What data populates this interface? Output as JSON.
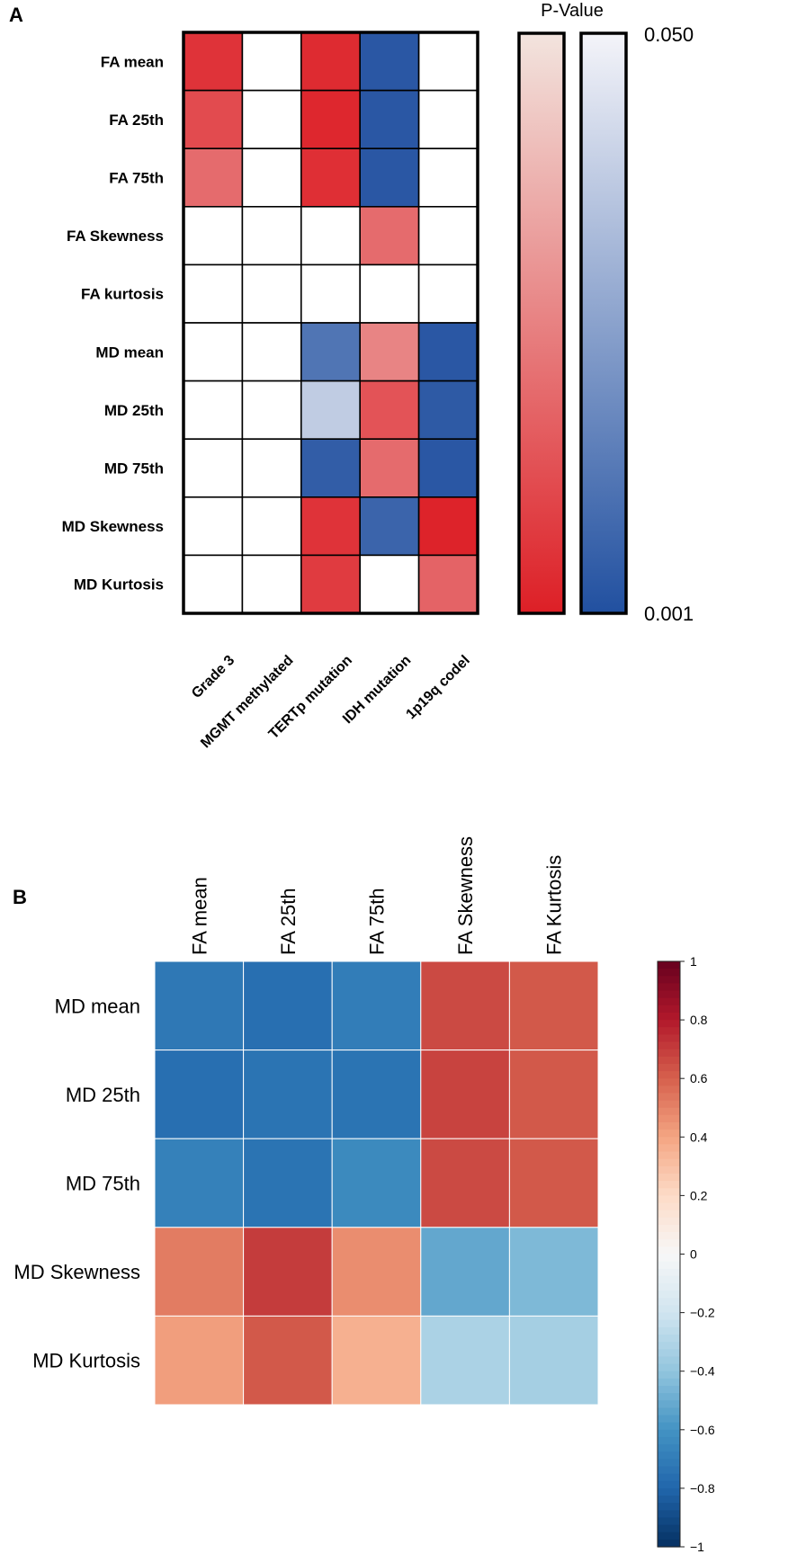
{
  "chart_data": [
    {
      "type": "heatmap",
      "panel_label": "A",
      "title": "",
      "colorbar_title": "P-Value",
      "colorbar_max_label": "0.050",
      "colorbar_min_label": "0.001",
      "p_range": [
        0.001,
        0.05
      ],
      "rows": [
        "FA mean",
        "FA 25th",
        "FA 75th",
        "FA Skewness",
        "FA kurtosis",
        "MD mean",
        "MD 25th",
        "MD 75th",
        "MD Skewness",
        "MD Kurtosis"
      ],
      "columns": [
        "Grade 3",
        "MGMT methylated",
        "TERTp mutation",
        "IDH mutation",
        "1p19q codel"
      ],
      "cells": [
        [
          {
            "c": "red",
            "p": 0.006
          },
          null,
          {
            "c": "red",
            "p": 0.004
          },
          {
            "c": "blue",
            "p": 0.003
          },
          null
        ],
        [
          {
            "c": "red",
            "p": 0.012
          },
          null,
          {
            "c": "red",
            "p": 0.003
          },
          {
            "c": "blue",
            "p": 0.003
          },
          null
        ],
        [
          {
            "c": "red",
            "p": 0.02
          },
          null,
          {
            "c": "red",
            "p": 0.005
          },
          {
            "c": "blue",
            "p": 0.003
          },
          null
        ],
        [
          null,
          null,
          null,
          {
            "c": "red",
            "p": 0.02
          },
          null
        ],
        [
          null,
          null,
          null,
          null,
          null
        ],
        [
          null,
          null,
          {
            "c": "blue",
            "p": 0.012
          },
          {
            "c": "red",
            "p": 0.026
          },
          {
            "c": "blue",
            "p": 0.003
          }
        ],
        [
          null,
          null,
          {
            "c": "blue",
            "p": 0.038
          },
          {
            "c": "red",
            "p": 0.014
          },
          {
            "c": "blue",
            "p": 0.004
          }
        ],
        [
          null,
          null,
          {
            "c": "blue",
            "p": 0.005
          },
          {
            "c": "red",
            "p": 0.02
          },
          {
            "c": "blue",
            "p": 0.003
          }
        ],
        [
          null,
          null,
          {
            "c": "red",
            "p": 0.006
          },
          {
            "c": "blue",
            "p": 0.007
          },
          {
            "c": "red",
            "p": 0.002
          }
        ],
        [
          null,
          null,
          {
            "c": "red",
            "p": 0.008
          },
          null,
          {
            "c": "red",
            "p": 0.018
          }
        ]
      ],
      "colors": {
        "red": "#dd1f26",
        "blue": "#2150a0",
        "red_light": "#f2e4de",
        "blue_light": "#f4f4f9",
        "border": "#000000"
      }
    },
    {
      "type": "heatmap",
      "panel_label": "B",
      "title": "",
      "columns": [
        "FA mean",
        "FA 25th",
        "FA 75th",
        "FA Skewness",
        "FA Kurtosis"
      ],
      "rows": [
        "MD mean",
        "MD 25th",
        "MD 75th",
        "MD Skewness",
        "MD Kurtosis"
      ],
      "values": [
        [
          -0.72,
          -0.76,
          -0.7,
          0.66,
          0.62
        ],
        [
          -0.76,
          -0.74,
          -0.74,
          0.68,
          0.62
        ],
        [
          -0.68,
          -0.74,
          -0.64,
          0.66,
          0.62
        ],
        [
          0.52,
          0.7,
          0.47,
          -0.52,
          -0.45
        ],
        [
          0.42,
          0.62,
          0.36,
          -0.32,
          -0.34
        ]
      ],
      "colorbar_range": [
        -1,
        1
      ],
      "colorbar_ticks": [
        "1",
        "0.8",
        "0.6",
        "0.4",
        "0.2",
        "0",
        "−0.2",
        "−0.4",
        "−0.6",
        "−0.8",
        "−1"
      ],
      "palette": [
        "#053061",
        "#2166ac",
        "#4393c3",
        "#92c5de",
        "#d1e5f0",
        "#f7f7f7",
        "#fddbc7",
        "#f4a582",
        "#d6604d",
        "#b2182b",
        "#67001f"
      ]
    }
  ]
}
